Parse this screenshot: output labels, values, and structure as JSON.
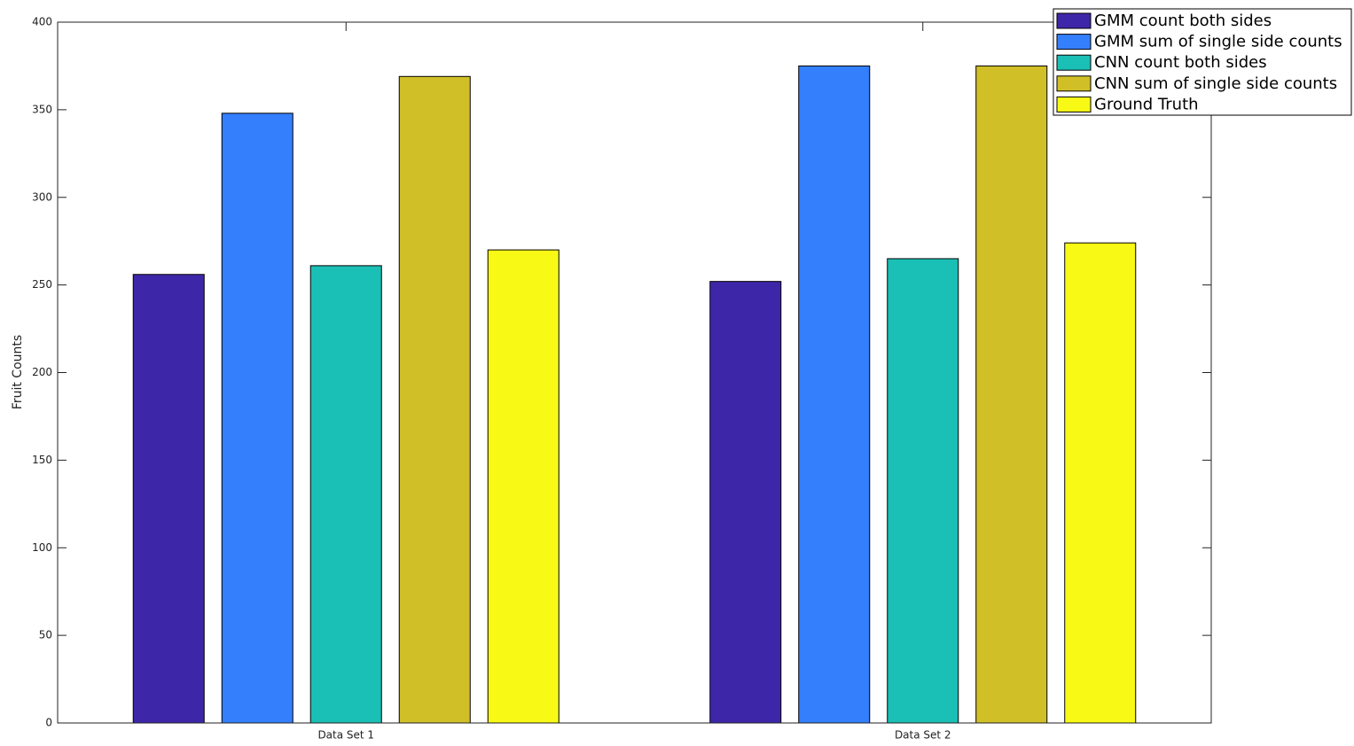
{
  "chart_data": {
    "type": "bar",
    "y_label": "Fruit Counts",
    "categories": [
      "Data Set 1",
      "Data Set 2"
    ],
    "series": [
      {
        "name": "GMM count both sides",
        "color": "#3e26a8",
        "values": [
          256,
          252
        ]
      },
      {
        "name": "GMM sum of single side counts",
        "color": "#347ffb",
        "values": [
          348,
          375
        ]
      },
      {
        "name": "CNN count both sides",
        "color": "#1abfb5",
        "values": [
          261,
          265
        ]
      },
      {
        "name": "CNN sum of single side counts",
        "color": "#d1bf27",
        "values": [
          369,
          375
        ]
      },
      {
        "name": "Ground Truth",
        "color": "#f8fa15",
        "values": [
          270,
          274
        ]
      }
    ],
    "ylim": [
      0,
      400
    ],
    "yticks": [
      0,
      50,
      100,
      150,
      200,
      250,
      300,
      350,
      400
    ],
    "grid": false,
    "legend": "upper right"
  }
}
